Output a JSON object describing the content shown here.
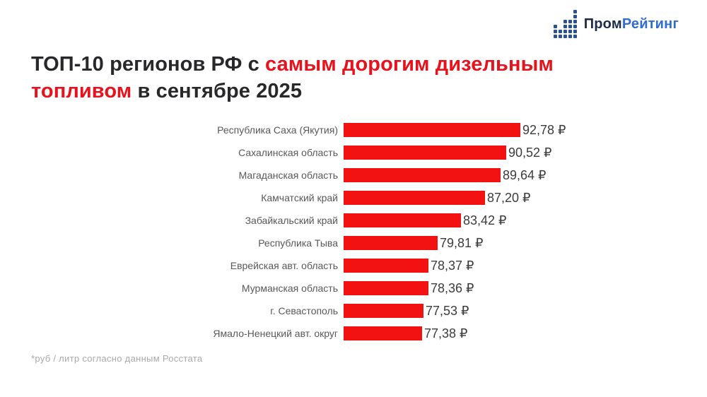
{
  "logo": {
    "text_primary": "Пром",
    "text_secondary": "Рейтинг",
    "primary_color": "#1c2c49",
    "secondary_color": "#2f6cd3",
    "icon_name": "dot-bar-chart-icon",
    "icon_color": "#2c5191",
    "icon_columns": [
      3,
      2,
      4,
      4,
      6
    ]
  },
  "title": {
    "dark_color": "#28282b",
    "red_color": "#e8121d",
    "lines": [
      {
        "segments": [
          {
            "text": "ТОП-10 регионов РФ с ",
            "red": false
          },
          {
            "text": "самым дорогим дизельным",
            "red": true
          }
        ]
      },
      {
        "segments": [
          {
            "text": "топливом",
            "red": true
          },
          {
            "text": " в сентябре 2025",
            "red": false
          }
        ]
      }
    ]
  },
  "chart_data": {
    "type": "bar",
    "orientation": "horizontal",
    "title": "ТОП-10 регионов РФ с самым дорогим дизельным топливом в сентябре 2025",
    "categories": [
      "Республика Саха (Якутия)",
      "Сахалинская область",
      "Магаданская область",
      "Камчатский край",
      "Забайкальский край",
      "Республика Тыва",
      "Еврейская авт. область",
      "Мурманская область",
      "г. Севастополь",
      "Ямало-Ненецкий авт. округ"
    ],
    "values": [
      92.78,
      90.52,
      89.64,
      87.2,
      83.42,
      79.81,
      78.37,
      78.36,
      77.53,
      77.38
    ],
    "value_labels": [
      "92,78 ₽",
      "90,52 ₽",
      "89,64 ₽",
      "87,20 ₽",
      "83,42 ₽",
      "79,81 ₽",
      "78,37 ₽",
      "78,36 ₽",
      "77,53 ₽",
      "77,38 ₽"
    ],
    "unit": "руб / литр",
    "bar_color": "#f31212",
    "xlim": [
      65,
      93
    ],
    "grid": false,
    "legend": false
  },
  "footnote": {
    "text": "*руб / литр согласно данным Росстата"
  }
}
